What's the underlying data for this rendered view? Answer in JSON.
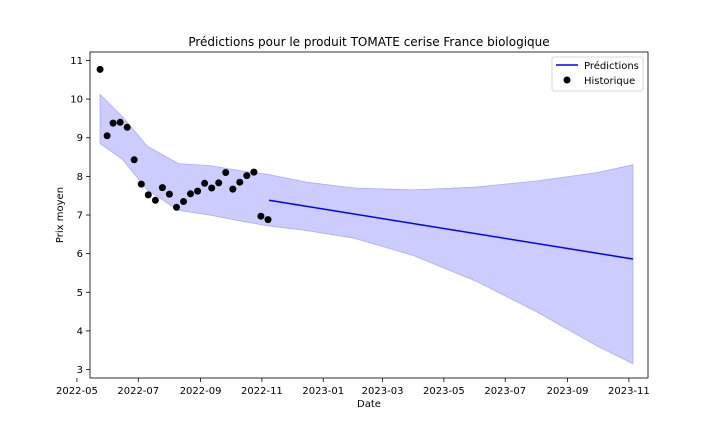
{
  "chart_data": {
    "type": "line",
    "title": "Prédictions pour le produit TOMATE cerise France biologique",
    "xlabel": "Date",
    "ylabel": "Prix moyen",
    "xlim": [
      "2022-05-14",
      "2023-11-20"
    ],
    "ylim": [
      2.78,
      11.22
    ],
    "x_ticks": [
      "2022-05",
      "2022-07",
      "2022-09",
      "2022-11",
      "2023-01",
      "2023-03",
      "2023-05",
      "2023-07",
      "2023-09",
      "2023-11"
    ],
    "y_ticks": [
      3,
      4,
      5,
      6,
      7,
      8,
      9,
      10,
      11
    ],
    "grid": false,
    "legend_position": "top-right",
    "colors": {
      "prediction": "#0000ff",
      "band": "#ccccff",
      "band_edge": "#aaaaff",
      "history": "#000000"
    },
    "series": [
      {
        "name": "Prédictions",
        "kind": "line",
        "x": [
          "2022-11-08",
          "2023-11-05"
        ],
        "y": [
          7.38,
          5.86
        ]
      },
      {
        "name": "Historique",
        "kind": "scatter",
        "x": [
          "2022-05-24",
          "2022-05-31",
          "2022-06-06",
          "2022-06-13",
          "2022-06-20",
          "2022-06-27",
          "2022-07-04",
          "2022-07-11",
          "2022-07-18",
          "2022-07-25",
          "2022-08-01",
          "2022-08-08",
          "2022-08-15",
          "2022-08-22",
          "2022-08-29",
          "2022-09-05",
          "2022-09-12",
          "2022-09-19",
          "2022-09-26",
          "2022-10-03",
          "2022-10-10",
          "2022-10-17",
          "2022-10-24",
          "2022-10-31",
          "2022-11-07"
        ],
        "y": [
          10.77,
          9.05,
          9.38,
          9.4,
          9.27,
          8.43,
          7.8,
          7.52,
          7.38,
          7.71,
          7.54,
          7.2,
          7.35,
          7.55,
          7.62,
          7.82,
          7.7,
          7.83,
          8.1,
          7.67,
          7.85,
          8.02,
          8.11,
          6.97,
          6.88
        ]
      }
    ],
    "band": {
      "x": [
        "2022-05-24",
        "2022-06-15",
        "2022-07-10",
        "2022-08-10",
        "2022-09-10",
        "2022-10-10",
        "2022-11-07",
        "2022-12-15",
        "2023-02-01",
        "2023-04-01",
        "2023-06-01",
        "2023-08-01",
        "2023-10-01",
        "2023-11-05"
      ],
      "upper": [
        10.12,
        9.55,
        8.78,
        8.33,
        8.28,
        8.15,
        8.05,
        7.85,
        7.7,
        7.65,
        7.72,
        7.88,
        8.1,
        8.3
      ],
      "lower": [
        8.85,
        8.45,
        7.65,
        7.12,
        7.0,
        6.85,
        6.72,
        6.6,
        6.4,
        5.95,
        5.3,
        4.5,
        3.6,
        3.15
      ]
    }
  }
}
